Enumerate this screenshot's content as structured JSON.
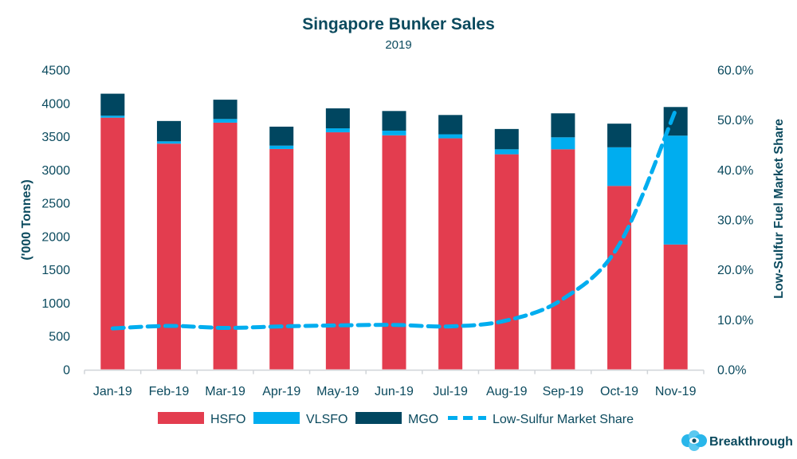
{
  "chart_data": {
    "type": "bar",
    "stacked": true,
    "title": "Singapore Bunker Sales",
    "subtitle": "2019",
    "ylabel": "('000 Tonnes)",
    "y2label": "Low-Sulfur Fuel Market Share",
    "ylim": [
      0,
      4500
    ],
    "y2lim": [
      0,
      60
    ],
    "yticks": [
      "0",
      "500",
      "1000",
      "1500",
      "2000",
      "2500",
      "3000",
      "3500",
      "4000",
      "4500"
    ],
    "y2ticks": [
      "0.0%",
      "10.0%",
      "20.0%",
      "30.0%",
      "40.0%",
      "50.0%",
      "60.0%"
    ],
    "grid": false,
    "legend_position": "bottom",
    "categories": [
      "Jan-19",
      "Feb-19",
      "Mar-19",
      "Apr-19",
      "May-19",
      "Jun-19",
      "Jul-19",
      "Aug-19",
      "Sep-19",
      "Oct-19",
      "Nov-19"
    ],
    "series": [
      {
        "name": "HSFO",
        "type": "bar",
        "color": "#e33d4f",
        "values": [
          3780,
          3390,
          3705,
          3310,
          3560,
          3515,
          3470,
          3230,
          3305,
          2755,
          1875
        ]
      },
      {
        "name": "VLSFO",
        "type": "bar",
        "color": "#00adef",
        "values": [
          30,
          35,
          55,
          50,
          60,
          70,
          60,
          75,
          180,
          580,
          1635
        ]
      },
      {
        "name": "MGO",
        "type": "bar",
        "color": "#004660",
        "values": [
          330,
          305,
          290,
          285,
          300,
          295,
          290,
          305,
          360,
          355,
          430
        ]
      },
      {
        "name": "Low-Sulfur Market Share",
        "type": "line",
        "axis": "right",
        "style": "dashed",
        "color": "#00adef",
        "values": [
          8.2,
          8.7,
          8.3,
          8.6,
          8.8,
          8.9,
          8.6,
          9.8,
          14.1,
          25.0,
          51.9
        ]
      }
    ]
  },
  "logo": {
    "text": "Breakthrough"
  }
}
